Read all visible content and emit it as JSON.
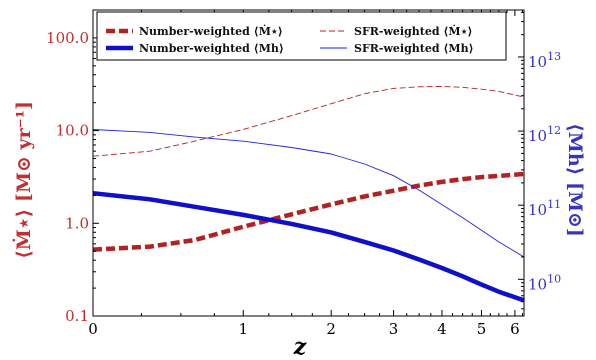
{
  "chart_data": {
    "type": "line",
    "xlabel": "z",
    "ylabel_left": "⟨Ṁ⋆⟩ [M⊙ yr⁻¹]",
    "ylabel_right": "⟨Mh⟩ [M⊙]",
    "x_scale": "log(1+z)",
    "xlim": [
      0,
      6.3
    ],
    "x_ticks": [
      0,
      1,
      2,
      3,
      4,
      5,
      6
    ],
    "x_tick_labels": [
      "0",
      "1",
      "2",
      "3",
      "4",
      "5",
      "6"
    ],
    "y_left_scale": "log",
    "ylim_left": [
      0.1,
      200
    ],
    "y_left_ticks": [
      0.1,
      1,
      10,
      100
    ],
    "y_left_tick_labels": [
      "0.1",
      "1.0",
      "10.0",
      "100.0"
    ],
    "y_right_scale": "log",
    "ylim_right": [
      3200000000.0,
      43000000000000.0
    ],
    "y_right_ticks": [
      10000000000.0,
      100000000000.0,
      1000000000000.0,
      10000000000000.0
    ],
    "y_right_tick_labels": [
      "10",
      "10",
      "10",
      "10"
    ],
    "y_right_tick_exponents": [
      "10",
      "11",
      "12",
      "13"
    ],
    "left_axis_color": "#c03030",
    "right_axis_color": "#3434c4",
    "grid": false,
    "legend_position": "top",
    "series": [
      {
        "name": "Number-weighted ⟨Ṁ⋆⟩",
        "axis": "left",
        "color": "#b22222",
        "style": "dashed",
        "width": "thick",
        "points": [
          [
            0,
            0.52
          ],
          [
            0.3,
            0.56
          ],
          [
            0.6,
            0.66
          ],
          [
            1,
            0.92
          ],
          [
            1.5,
            1.25
          ],
          [
            2,
            1.6
          ],
          [
            2.5,
            1.95
          ],
          [
            3,
            2.25
          ],
          [
            3.5,
            2.55
          ],
          [
            4,
            2.8
          ],
          [
            4.5,
            3.0
          ],
          [
            5,
            3.15
          ],
          [
            5.5,
            3.25
          ],
          [
            6.3,
            3.4
          ]
        ]
      },
      {
        "name": "SFR-weighted ⟨Ṁ⋆⟩",
        "axis": "left",
        "color": "#b22222",
        "style": "dashed",
        "width": "thin",
        "points": [
          [
            0,
            5.3
          ],
          [
            0.3,
            6.0
          ],
          [
            0.6,
            7.7
          ],
          [
            1,
            10.3
          ],
          [
            1.5,
            14.5
          ],
          [
            2,
            19.5
          ],
          [
            2.5,
            25
          ],
          [
            3,
            28.5
          ],
          [
            3.5,
            29.7
          ],
          [
            4,
            29.9
          ],
          [
            4.5,
            29.3
          ],
          [
            5,
            28
          ],
          [
            5.5,
            26.5
          ],
          [
            6.3,
            23
          ]
        ]
      },
      {
        "name": "Number-weighted ⟨Mh⟩",
        "axis": "right",
        "color": "#1010c8",
        "style": "solid",
        "width": "thick",
        "points": [
          [
            0,
            145000000000.0
          ],
          [
            0.3,
            120000000000.0
          ],
          [
            0.6,
            95000000000.0
          ],
          [
            1,
            74000000000.0
          ],
          [
            1.5,
            56000000000.0
          ],
          [
            2,
            43000000000.0
          ],
          [
            2.5,
            32000000000.0
          ],
          [
            3,
            24500000000.0
          ],
          [
            3.5,
            18500000000.0
          ],
          [
            4,
            14200000000.0
          ],
          [
            4.5,
            11000000000.0
          ],
          [
            5,
            8500000000.0
          ],
          [
            5.5,
            6800000000.0
          ],
          [
            6.3,
            5200000000.0
          ]
        ]
      },
      {
        "name": "SFR-weighted ⟨Mh⟩",
        "axis": "right",
        "color": "#2222dd",
        "style": "solid",
        "width": "thin",
        "points": [
          [
            0,
            1050000000000.0
          ],
          [
            0.3,
            960000000000.0
          ],
          [
            0.6,
            830000000000.0
          ],
          [
            1,
            730000000000.0
          ],
          [
            1.5,
            600000000000.0
          ],
          [
            2,
            490000000000.0
          ],
          [
            2.5,
            360000000000.0
          ],
          [
            3,
            250000000000.0
          ],
          [
            3.5,
            160000000000.0
          ],
          [
            4,
            102000000000.0
          ],
          [
            4.5,
            68000000000.0
          ],
          [
            5,
            46000000000.0
          ],
          [
            5.5,
            32000000000.0
          ],
          [
            6.3,
            20000000000.0
          ]
        ]
      }
    ]
  }
}
